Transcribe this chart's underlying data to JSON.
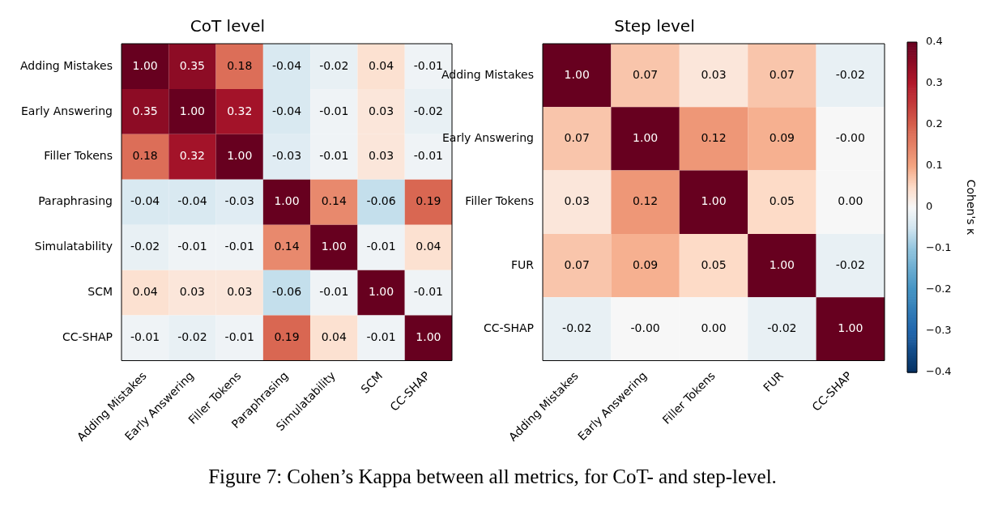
{
  "chart_data": [
    {
      "type": "heatmap",
      "title": "CoT level",
      "categories": [
        "Adding Mistakes",
        "Early Answering",
        "Filler Tokens",
        "Paraphrasing",
        "Simulatability",
        "SCM",
        "CC-SHAP"
      ],
      "y_categories": [
        "Adding Mistakes",
        "Early Answering",
        "Filler Tokens",
        "Paraphrasing",
        "Simulatability",
        "SCM",
        "CC-SHAP"
      ],
      "cells": [
        [
          1.0,
          0.35,
          0.18,
          -0.04,
          -0.02,
          0.04,
          -0.01
        ],
        [
          0.35,
          1.0,
          0.32,
          -0.04,
          -0.01,
          0.03,
          -0.02
        ],
        [
          0.18,
          0.32,
          1.0,
          -0.03,
          -0.01,
          0.03,
          -0.01
        ],
        [
          -0.04,
          -0.04,
          -0.03,
          1.0,
          0.14,
          -0.06,
          0.19
        ],
        [
          -0.02,
          -0.01,
          -0.01,
          0.14,
          1.0,
          -0.01,
          0.04
        ],
        [
          0.04,
          0.03,
          0.03,
          -0.06,
          -0.01,
          1.0,
          -0.01
        ],
        [
          -0.01,
          -0.02,
          -0.01,
          0.19,
          0.04,
          -0.01,
          1.0
        ]
      ],
      "cell_labels": [
        [
          "1.00",
          "0.35",
          "0.18",
          "-0.04",
          "-0.02",
          "0.04",
          "-0.01"
        ],
        [
          "0.35",
          "1.00",
          "0.32",
          "-0.04",
          "-0.01",
          "0.03",
          "-0.02"
        ],
        [
          "0.18",
          "0.32",
          "1.00",
          "-0.03",
          "-0.01",
          "0.03",
          "-0.01"
        ],
        [
          "-0.04",
          "-0.04",
          "-0.03",
          "1.00",
          "0.14",
          "-0.06",
          "0.19"
        ],
        [
          "-0.02",
          "-0.01",
          "-0.01",
          "0.14",
          "1.00",
          "-0.01",
          "0.04"
        ],
        [
          "0.04",
          "0.03",
          "0.03",
          "-0.06",
          "-0.01",
          "1.00",
          "-0.01"
        ],
        [
          "-0.01",
          "-0.02",
          "-0.01",
          "0.19",
          "0.04",
          "-0.01",
          "1.00"
        ]
      ],
      "annotations": [
        "Figure 7: Cohen’s Kappa between all metrics, for CoT- and step-level."
      ]
    },
    {
      "type": "heatmap",
      "title": "Step level",
      "categories": [
        "Adding Mistakes",
        "Early Answering",
        "Filler Tokens",
        "FUR",
        "CC-SHAP"
      ],
      "y_categories": [
        "Adding Mistakes",
        "Early Answering",
        "Filler Tokens",
        "FUR",
        "CC-SHAP"
      ],
      "cells": [
        [
          1.0,
          0.07,
          0.03,
          0.07,
          -0.02
        ],
        [
          0.07,
          1.0,
          0.12,
          0.09,
          0
        ],
        [
          0.03,
          0.12,
          1.0,
          0.05,
          0
        ],
        [
          0.07,
          0.09,
          0.05,
          1.0,
          -0.02
        ],
        [
          -0.02,
          0,
          0,
          -0.02,
          1.0
        ]
      ],
      "cell_labels": [
        [
          "1.00",
          "0.07",
          "0.03",
          "0.07",
          "-0.02"
        ],
        [
          "0.07",
          "1.00",
          "0.12",
          "0.09",
          "-0.00"
        ],
        [
          "0.03",
          "0.12",
          "1.00",
          "0.05",
          "0.00"
        ],
        [
          "0.07",
          "0.09",
          "0.05",
          "1.00",
          "-0.02"
        ],
        [
          "-0.02",
          "-0.00",
          "0.00",
          "-0.02",
          "1.00"
        ]
      ],
      "clim": [
        -0.4,
        0.4
      ],
      "cticks": [
        {
          "value": -0.4,
          "label": "−0.4"
        },
        {
          "value": -0.3,
          "label": "−0.3"
        },
        {
          "value": -0.2,
          "label": "−0.2"
        },
        {
          "value": -0.1,
          "label": "−0.1"
        },
        0.0,
        0.1,
        0.2,
        0.3,
        0.4
      ],
      "clabel": "Cohen's κ"
    }
  ]
}
